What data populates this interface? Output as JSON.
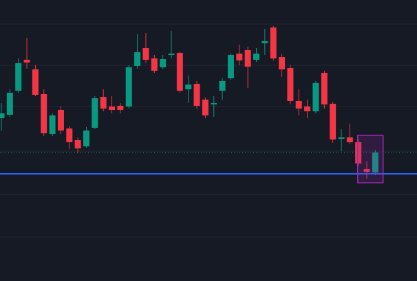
{
  "chart_data": {
    "type": "candlestick",
    "up_color": "#089981",
    "down_color": "#f23645",
    "background": "#161a25",
    "ylim": [
      0,
      409
    ],
    "yticks": [
      64,
      126,
      189,
      254,
      314,
      374
    ],
    "grid": true,
    "open": [
      237,
      242,
      277,
      322,
      308,
      272,
      214,
      249,
      222,
      205,
      196,
      223,
      268,
      254,
      255,
      254,
      313,
      339,
      324,
      311,
      329,
      332,
      279,
      287,
      264,
      257,
      277,
      295,
      331,
      336,
      322,
      346,
      369,
      326,
      310,
      262,
      254,
      247,
      303,
      258,
      207,
      209,
      202,
      163,
      158
    ],
    "high": [
      259,
      279,
      324,
      354,
      314,
      279,
      244,
      254,
      226,
      209,
      224,
      269,
      279,
      269,
      259,
      314,
      359,
      361,
      329,
      329,
      364,
      334,
      299,
      291,
      267,
      269,
      295,
      331,
      344,
      341,
      339,
      367,
      371,
      331,
      314,
      279,
      264,
      291,
      306,
      261,
      221,
      229,
      207,
      174,
      191
    ],
    "low": [
      219,
      239,
      274,
      309,
      269,
      211,
      211,
      214,
      192,
      187,
      194,
      221,
      247,
      244,
      244,
      251,
      309,
      317,
      303,
      309,
      324,
      274,
      259,
      251,
      237,
      239,
      264,
      293,
      314,
      281,
      319,
      329,
      321,
      297,
      257,
      241,
      237,
      244,
      251,
      201,
      189,
      199,
      167,
      149,
      154
    ],
    "close": [
      244,
      274,
      317,
      318,
      271,
      215,
      241,
      219,
      202,
      193,
      219,
      266,
      251,
      249,
      249,
      311,
      333,
      322,
      306,
      323,
      331,
      277,
      286,
      255,
      241,
      259,
      291,
      329,
      321,
      312,
      331,
      349,
      324,
      308,
      262,
      251,
      247,
      288,
      257,
      206,
      209,
      202,
      171,
      159,
      187
    ],
    "hline": {
      "value": 156,
      "color": "#2962ff"
    },
    "box": {
      "from": 42,
      "to": 44,
      "low": 143,
      "high": 212,
      "color": "#9c27b0"
    }
  }
}
